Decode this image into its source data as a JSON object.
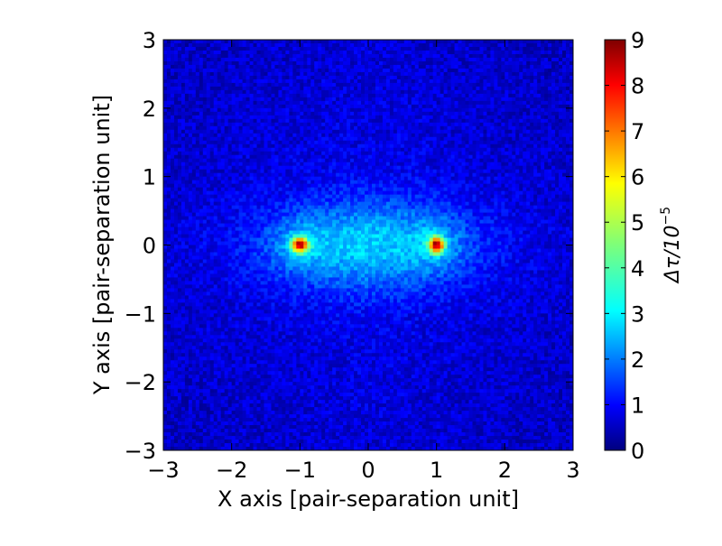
{
  "chart_data": {
    "type": "heatmap",
    "title": "",
    "xlabel": "X axis [pair-separation unit]",
    "ylabel": "Y axis [pair-separation unit]",
    "xlim": [
      -3,
      3
    ],
    "ylim": [
      -3,
      3
    ],
    "xticks": [
      "−3",
      "−2",
      "−1",
      "0",
      "1",
      "2",
      "3"
    ],
    "yticks": [
      "−3",
      "−2",
      "−1",
      "0",
      "1",
      "2",
      "3"
    ],
    "xtick_values": [
      -3,
      -2,
      -1,
      0,
      1,
      2,
      3
    ],
    "ytick_values": [
      -3,
      -2,
      -1,
      0,
      1,
      2,
      3
    ],
    "grid": false,
    "colormap": "jet",
    "colorbar": {
      "label_symbol": "Δτ/10",
      "label_exponent": "−5",
      "range": [
        0,
        9
      ],
      "ticks": [
        "0",
        "1",
        "2",
        "3",
        "4",
        "5",
        "6",
        "7",
        "8",
        "9"
      ],
      "tick_values": [
        0,
        1,
        2,
        3,
        4,
        5,
        6,
        7,
        8,
        9
      ]
    },
    "peaks": [
      {
        "x": -1,
        "y": 0,
        "value": 9
      },
      {
        "x": 1,
        "y": 0,
        "value": 9
      }
    ],
    "background_level": 1,
    "halo_level": 3
  }
}
